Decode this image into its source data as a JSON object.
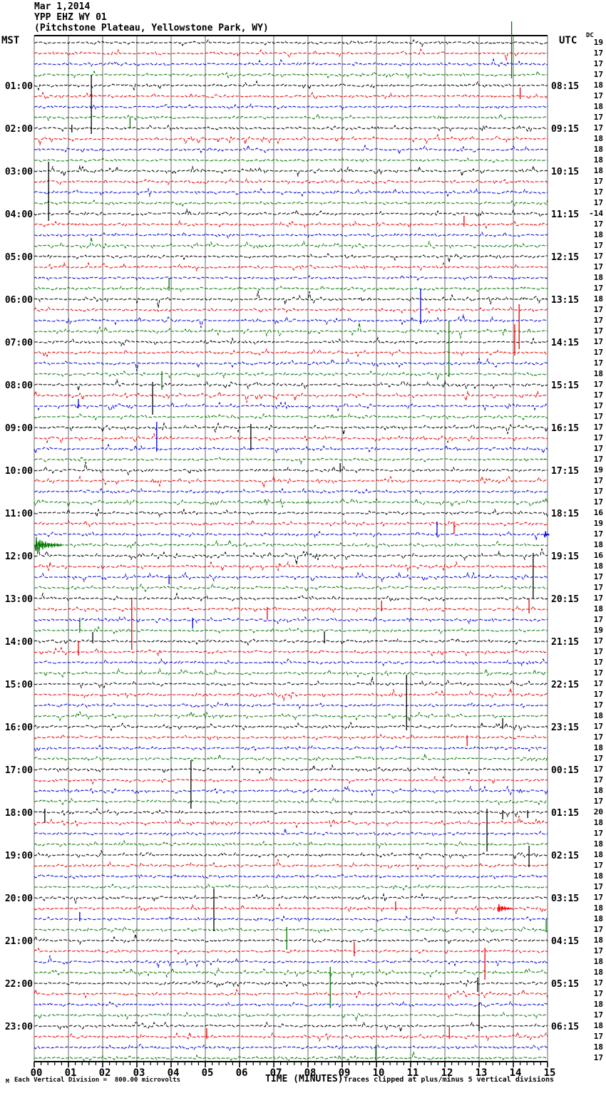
{
  "header": {
    "date": "Mar 1,2014",
    "station": "YPP EHZ WY 01",
    "location": "(Pitchstone Plateau, Yellowstone Park, WY)"
  },
  "axes": {
    "left_header": "MST",
    "right_header": "UTC",
    "dc_header": "DC",
    "x_title": "TIME (MINUTES)",
    "x_ticks": [
      "00",
      "01",
      "02",
      "03",
      "04",
      "05",
      "06",
      "07",
      "08",
      "09",
      "10",
      "11",
      "12",
      "13",
      "14",
      "15"
    ]
  },
  "footer": {
    "scale_mark": "M",
    "scale_note": "Each Vertical Division =  800.00 microvolts",
    "clip_note": "Traces clipped at plus/minus 5 vertical divisions"
  },
  "chart_data": {
    "type": "line",
    "subtype": "helicorder-seismogram",
    "title": "YPP EHZ WY 01 (Pitchstone Plateau, Yellowstone Park, WY) Mar 1,2014",
    "rows": 96,
    "minutes_per_row": 15,
    "x_range_minutes": [
      0,
      15
    ],
    "grid": true,
    "clip_divisions": 5,
    "microvolts_per_division": 800.0,
    "trace_colors": [
      "#000000",
      "#ee0000",
      "#0000dd",
      "#007700"
    ],
    "grid_color": "#8a8a8a",
    "label_rows_every": 4,
    "mst_labels": [
      "01:00",
      "02:00",
      "03:00",
      "04:00",
      "05:00",
      "06:00",
      "07:00",
      "08:00",
      "09:00",
      "10:00",
      "11:00",
      "12:00",
      "13:00",
      "14:00",
      "15:00",
      "16:00",
      "17:00",
      "18:00",
      "19:00",
      "20:00",
      "21:00",
      "22:00",
      "23:00"
    ],
    "utc_labels": [
      "08:15",
      "09:15",
      "10:15",
      "11:15",
      "12:15",
      "13:15",
      "14:15",
      "15:15",
      "16:15",
      "17:15",
      "18:15",
      "19:15",
      "20:15",
      "21:15",
      "22:15",
      "23:15",
      "00:15",
      "01:15",
      "02:15",
      "03:15",
      "04:15",
      "05:15",
      "06:15"
    ],
    "dc_values": [
      19,
      17,
      17,
      17,
      18,
      17,
      18,
      17,
      17,
      18,
      18,
      18,
      18,
      17,
      17,
      17,
      -14,
      17,
      18,
      17,
      17,
      17,
      18,
      17,
      18,
      17,
      17,
      17,
      17,
      17,
      17,
      18,
      17,
      17,
      17,
      17,
      17,
      17,
      17,
      17,
      19,
      17,
      17,
      17,
      16,
      19,
      17,
      18,
      16,
      18,
      17,
      17,
      17,
      18,
      17,
      19,
      17,
      17,
      17,
      17,
      17,
      17,
      17,
      18,
      17,
      17,
      18,
      17,
      17,
      17,
      18,
      17,
      20,
      18,
      17,
      18,
      18,
      17,
      18,
      17,
      17,
      18,
      18,
      17,
      18,
      17,
      18,
      18,
      17,
      17,
      18,
      17,
      18,
      17,
      18,
      17
    ],
    "events": [
      {
        "r": 3,
        "m": 13.95,
        "u": 75,
        "d": 5
      },
      {
        "r": 5,
        "m": 14.2,
        "u": 12,
        "d": 4
      },
      {
        "r": 7,
        "m": 2.8,
        "u": 0,
        "d": 14
      },
      {
        "r": 8,
        "m": 1.67,
        "u": 75,
        "d": 8
      },
      {
        "r": 8,
        "m": 1.1,
        "u": 5,
        "d": 6
      },
      {
        "r": 16,
        "m": 0.42,
        "u": 73,
        "d": 10
      },
      {
        "r": 17,
        "m": 12.56,
        "u": 12,
        "d": 3
      },
      {
        "r": 23,
        "m": 3.94,
        "u": 15,
        "d": 3
      },
      {
        "r": 25,
        "m": 14.17,
        "u": 8,
        "d": 55
      },
      {
        "r": 26,
        "m": 11.29,
        "u": 45,
        "d": 5
      },
      {
        "r": 29,
        "m": 14.04,
        "u": 40,
        "d": 4
      },
      {
        "r": 31,
        "m": 12.12,
        "u": 75,
        "d": 4
      },
      {
        "r": 31,
        "m": 3.73,
        "u": 4,
        "d": 22
      },
      {
        "r": 32,
        "m": 3.46,
        "u": 4,
        "d": 42
      },
      {
        "r": 34,
        "m": 1.29,
        "u": 10,
        "d": 3
      },
      {
        "r": 36,
        "m": 6.33,
        "u": 5,
        "d": 32
      },
      {
        "r": 38,
        "m": 3.58,
        "u": 38,
        "d": 4
      },
      {
        "r": 40,
        "m": 8.94,
        "u": 10,
        "d": 3
      },
      {
        "r": 45,
        "m": 12.27,
        "u": 3,
        "d": 14
      },
      {
        "r": 46,
        "m": 11.77,
        "u": 18,
        "d": 3
      },
      {
        "r": 46,
        "m": 14.9,
        "burst": true,
        "w": 7,
        "a": 9
      },
      {
        "r": 47,
        "m": 0.02,
        "burst": true,
        "w": 38,
        "a": 13
      },
      {
        "r": 48,
        "m": 14.58,
        "u": 4,
        "d": 60
      },
      {
        "r": 50,
        "m": 3.94,
        "u": 3,
        "d": 10
      },
      {
        "r": 53,
        "m": 2.85,
        "u": 15,
        "d": 57
      },
      {
        "r": 53,
        "m": 6.81,
        "u": 3,
        "d": 15
      },
      {
        "r": 53,
        "m": 10.15,
        "u": 12,
        "d": 3
      },
      {
        "r": 53,
        "m": 14.46,
        "u": 14,
        "d": 6
      },
      {
        "r": 54,
        "m": 4.63,
        "u": 3,
        "d": 12
      },
      {
        "r": 55,
        "m": 1.33,
        "u": 18,
        "d": 3
      },
      {
        "r": 56,
        "m": 1.71,
        "u": 13,
        "d": 3
      },
      {
        "r": 56,
        "m": 8.48,
        "u": 14,
        "d": 3
      },
      {
        "r": 57,
        "m": 1.29,
        "u": 15,
        "d": 5
      },
      {
        "r": 64,
        "m": 10.88,
        "u": 73,
        "d": 5
      },
      {
        "r": 64,
        "m": 13.69,
        "u": 12,
        "d": 3
      },
      {
        "r": 65,
        "m": 12.65,
        "u": 3,
        "d": 12
      },
      {
        "r": 68,
        "m": 4.58,
        "u": 13,
        "d": 55
      },
      {
        "r": 72,
        "m": 0.31,
        "u": 5,
        "d": 15
      },
      {
        "r": 72,
        "m": 13.23,
        "u": 5,
        "d": 55
      },
      {
        "r": 72,
        "m": 13.69,
        "u": 3,
        "d": 10
      },
      {
        "r": 72,
        "m": 14.42,
        "u": 3,
        "d": 8
      },
      {
        "r": 76,
        "m": 14.46,
        "u": 13,
        "d": 17
      },
      {
        "r": 80,
        "m": 5.25,
        "u": 13,
        "d": 47
      },
      {
        "r": 81,
        "m": 10.56,
        "u": 10,
        "d": 3
      },
      {
        "r": 81,
        "m": 13.54,
        "burst": true,
        "w": 20,
        "a": 8
      },
      {
        "r": 82,
        "m": 1.33,
        "u": 10,
        "d": 3
      },
      {
        "r": 83,
        "m": 7.38,
        "u": 4,
        "d": 28
      },
      {
        "r": 83,
        "m": 14.96,
        "u": 15,
        "d": 3
      },
      {
        "r": 85,
        "m": 9.35,
        "u": 13,
        "d": 7
      },
      {
        "r": 85,
        "m": 13.17,
        "u": 5,
        "d": 40
      },
      {
        "r": 87,
        "m": 8.65,
        "u": 8,
        "d": 50
      },
      {
        "r": 88,
        "m": 12.96,
        "u": 8,
        "d": 12
      },
      {
        "r": 92,
        "m": 13.0,
        "u": 33,
        "d": 7
      },
      {
        "r": 93,
        "m": 5.04,
        "u": 12,
        "d": 3
      },
      {
        "r": 93,
        "m": 12.13,
        "u": 14,
        "d": 3
      },
      {
        "r": 95,
        "m": 9.98,
        "u": 18,
        "d": 3
      }
    ]
  }
}
